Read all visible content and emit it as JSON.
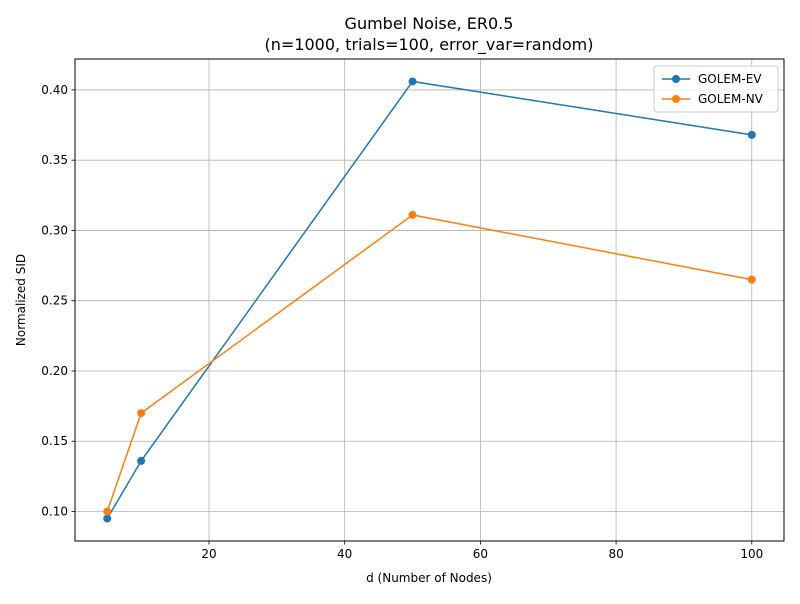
{
  "chart_data": {
    "type": "line",
    "title": "Gumbel Noise, ER0.5",
    "subtitle": "(n=1000, trials=100, error_var=random)",
    "xlabel": "d (Number of Nodes)",
    "ylabel": "Normalized SID",
    "x": [
      5,
      10,
      50,
      100
    ],
    "xlim": [
      0.25,
      104.75
    ],
    "ylim": [
      0.079,
      0.422
    ],
    "xticks": [
      20,
      40,
      60,
      80,
      100
    ],
    "yticks": [
      0.1,
      0.15,
      0.2,
      0.25,
      0.3,
      0.35,
      0.4
    ],
    "grid": true,
    "legend_position": "top-right",
    "series": [
      {
        "name": "GOLEM-EV",
        "color": "#1f77b4",
        "values": [
          0.095,
          0.136,
          0.406,
          0.368
        ]
      },
      {
        "name": "GOLEM-NV",
        "color": "#ff7f0e",
        "values": [
          0.1,
          0.17,
          0.311,
          0.265
        ]
      }
    ]
  }
}
